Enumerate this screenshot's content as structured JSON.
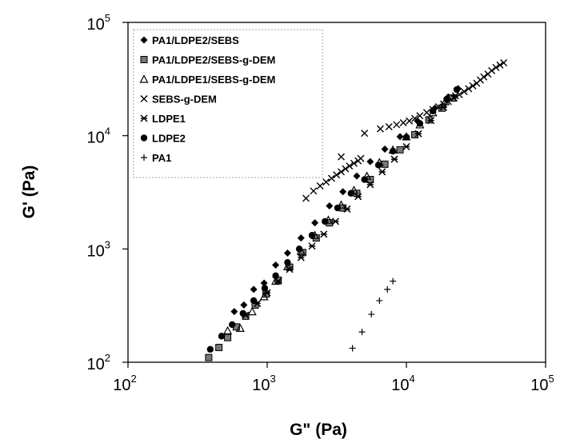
{
  "chart_data": {
    "type": "scatter",
    "xlabel": "G\" (Pa)",
    "ylabel": "G' (Pa)",
    "xscale": "log",
    "yscale": "log",
    "xlim": [
      100,
      100000
    ],
    "ylim": [
      100,
      100000
    ],
    "x_ticks": [
      {
        "value": 100,
        "base": "10",
        "exp": "2"
      },
      {
        "value": 1000,
        "base": "10",
        "exp": "3"
      },
      {
        "value": 10000,
        "base": "10",
        "exp": "4"
      },
      {
        "value": 100000,
        "base": "10",
        "exp": "5"
      }
    ],
    "y_ticks": [
      {
        "value": 100,
        "base": "10",
        "exp": "2"
      },
      {
        "value": 1000,
        "base": "10",
        "exp": "3"
      },
      {
        "value": 10000,
        "base": "10",
        "exp": "4"
      },
      {
        "value": 100000,
        "base": "10",
        "exp": "5"
      }
    ],
    "grid": false,
    "legend_position": "top-left",
    "series": [
      {
        "name": "PA1/LDPE2/SEBS",
        "marker": "diamond",
        "points": [
          [
            580,
            280
          ],
          [
            680,
            320
          ],
          [
            800,
            440
          ],
          [
            950,
            500
          ],
          [
            1150,
            720
          ],
          [
            1400,
            920
          ],
          [
            1750,
            1250
          ],
          [
            2200,
            1700
          ],
          [
            2800,
            2400
          ],
          [
            3500,
            3200
          ],
          [
            4400,
            4400
          ],
          [
            5500,
            5900
          ],
          [
            7000,
            7600
          ],
          [
            9000,
            9800
          ],
          [
            12000,
            13500
          ],
          [
            16000,
            17500
          ],
          [
            20000,
            22000
          ],
          [
            23500,
            26000
          ]
        ]
      },
      {
        "name": "PA1/LDPE2/SEBS-g-DEM",
        "marker": "square",
        "points": [
          [
            380,
            110
          ],
          [
            450,
            135
          ],
          [
            520,
            165
          ],
          [
            600,
            205
          ],
          [
            700,
            255
          ],
          [
            820,
            320
          ],
          [
            980,
            400
          ],
          [
            1200,
            530
          ],
          [
            1450,
            690
          ],
          [
            1800,
            930
          ],
          [
            2250,
            1250
          ],
          [
            2800,
            1700
          ],
          [
            3500,
            2300
          ],
          [
            4400,
            3100
          ],
          [
            5500,
            4100
          ],
          [
            7000,
            5600
          ],
          [
            9000,
            7500
          ],
          [
            11500,
            10200
          ],
          [
            14500,
            13800
          ],
          [
            18000,
            17500
          ],
          [
            21500,
            21500
          ]
        ]
      },
      {
        "name": "PA1/LDPE1/SEBS-g-DEM",
        "marker": "triangle",
        "points": [
          [
            520,
            190
          ],
          [
            640,
            200
          ],
          [
            780,
            280
          ],
          [
            950,
            380
          ],
          [
            1150,
            520
          ],
          [
            1400,
            700
          ],
          [
            1750,
            960
          ],
          [
            2200,
            1320
          ],
          [
            2750,
            1800
          ],
          [
            3400,
            2450
          ],
          [
            4200,
            3300
          ],
          [
            5200,
            4400
          ],
          [
            6400,
            5800
          ],
          [
            8000,
            7500
          ],
          [
            10000,
            9800
          ],
          [
            12500,
            12500
          ],
          [
            15500,
            16000
          ],
          [
            19000,
            20000
          ]
        ]
      },
      {
        "name": "SEBS-g-DEM",
        "marker": "x",
        "points": [
          [
            1900,
            2800
          ],
          [
            2150,
            3250
          ],
          [
            2400,
            3600
          ],
          [
            2650,
            3900
          ],
          [
            2900,
            4200
          ],
          [
            3150,
            4500
          ],
          [
            3400,
            4800
          ],
          [
            3650,
            5100
          ],
          [
            3900,
            5400
          ],
          [
            4200,
            5700
          ],
          [
            4500,
            6000
          ],
          [
            4700,
            6300
          ],
          [
            3400,
            6500
          ],
          [
            5000,
            10500
          ],
          [
            6500,
            11500
          ],
          [
            7500,
            12000
          ],
          [
            8500,
            12500
          ],
          [
            9500,
            13000
          ],
          [
            10500,
            13500
          ],
          [
            11500,
            14200
          ],
          [
            12500,
            15000
          ],
          [
            14000,
            16000
          ],
          [
            15500,
            17000
          ],
          [
            17000,
            18000
          ],
          [
            18500,
            19000
          ],
          [
            20000,
            20000
          ],
          [
            22000,
            21500
          ],
          [
            24000,
            23000
          ],
          [
            26000,
            24500
          ],
          [
            28000,
            26000
          ],
          [
            30000,
            27500
          ],
          [
            32000,
            29000
          ],
          [
            34000,
            31000
          ],
          [
            36000,
            33000
          ],
          [
            38500,
            35000
          ],
          [
            41000,
            37500
          ],
          [
            44000,
            40000
          ],
          [
            47000,
            42000
          ],
          [
            50000,
            44000
          ]
        ]
      },
      {
        "name": "LDPE1",
        "marker": "star",
        "points": [
          [
            700,
            260
          ],
          [
            850,
            330
          ],
          [
            1000,
            410
          ],
          [
            1200,
            520
          ],
          [
            1450,
            660
          ],
          [
            1750,
            840
          ],
          [
            2100,
            1060
          ],
          [
            2550,
            1350
          ],
          [
            3100,
            1750
          ],
          [
            3750,
            2250
          ],
          [
            4500,
            2900
          ],
          [
            5500,
            3700
          ],
          [
            6700,
            4800
          ],
          [
            8200,
            6200
          ],
          [
            10000,
            8000
          ],
          [
            12200,
            10400
          ],
          [
            15000,
            13600
          ],
          [
            18500,
            17800
          ],
          [
            22500,
            22500
          ]
        ]
      },
      {
        "name": "LDPE2",
        "marker": "circle",
        "points": [
          [
            390,
            130
          ],
          [
            470,
            170
          ],
          [
            560,
            215
          ],
          [
            670,
            270
          ],
          [
            800,
            350
          ],
          [
            960,
            450
          ],
          [
            1150,
            580
          ],
          [
            1400,
            760
          ],
          [
            1700,
            1000
          ],
          [
            2100,
            1320
          ],
          [
            2600,
            1750
          ],
          [
            3200,
            2300
          ],
          [
            4000,
            3100
          ],
          [
            5000,
            4100
          ],
          [
            6300,
            5500
          ],
          [
            8000,
            7300
          ],
          [
            10000,
            9700
          ],
          [
            12500,
            12800
          ],
          [
            15500,
            16500
          ],
          [
            19500,
            21000
          ],
          [
            23000,
            25500
          ]
        ]
      },
      {
        "name": "PA1",
        "marker": "plus",
        "points": [
          [
            4100,
            133
          ],
          [
            4800,
            185
          ],
          [
            5600,
            265
          ],
          [
            6400,
            350
          ],
          [
            7300,
            440
          ],
          [
            8000,
            520
          ]
        ]
      }
    ]
  }
}
